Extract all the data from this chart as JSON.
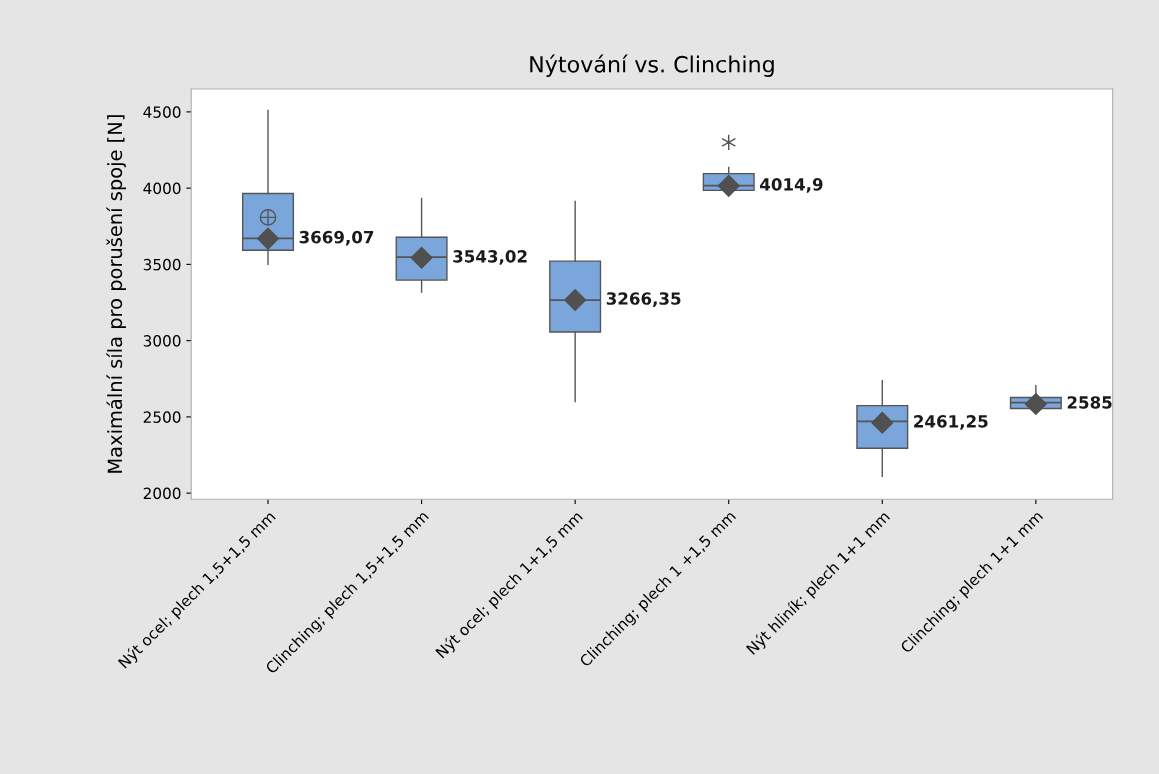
{
  "chart_data": {
    "type": "box",
    "title": "Nýtování vs. Clinching",
    "ylabel": "Maximální síla pro porušení spoje [N]",
    "categories": [
      "Nýt ocel; plech 1,5+1,5 mm",
      "Clinching; plech 1,5+1,5 mm",
      "Nýt ocel; plech 1+1,5 mm",
      "Clinching; plech 1 +1,5 mm",
      "Nýt hliník; plech 1+1 mm",
      "Clinching; plech 1+1 mm"
    ],
    "boxes": [
      {
        "low": 3500,
        "q1": 3593,
        "median": 3670,
        "q3": 3965,
        "high": 4510,
        "mean": 3808
      },
      {
        "low": 3318,
        "q1": 3397,
        "median": 3547,
        "q3": 3678,
        "high": 3932
      },
      {
        "low": 2600,
        "q1": 3057,
        "median": 3266,
        "q3": 3521,
        "high": 3912
      },
      {
        "low": 3965,
        "q1": 3985,
        "median": 4017,
        "q3": 4095,
        "high": 4135,
        "outliers": [
          4300
        ]
      },
      {
        "low": 2110,
        "q1": 2294,
        "median": 2470,
        "q3": 2574,
        "high": 2738
      },
      {
        "low": 2550,
        "q1": 2555,
        "median": 2594,
        "q3": 2627,
        "high": 2705
      }
    ],
    "color": "#7ba6db",
    "series": [
      {
        "type": "scatter",
        "color": "#505050",
        "marker": "diamond",
        "x": [
          "Nýt ocel; plech 1,5+1,5 mm",
          "Clinching; plech 1,5+1,5 mm",
          "Nýt ocel; plech 1+1,5 mm",
          "Clinching; plech 1 +1,5 mm",
          "Nýt hliník; plech 1+1 mm",
          "Clinching; plech 1+1 mm"
        ],
        "values": [
          3669.07,
          3543.02,
          3266.35,
          4014.9,
          2461.25,
          2585
        ],
        "value_labels": [
          "3669,07",
          "3543,02",
          "3266,35",
          "4014,9",
          "2461,25",
          "2585"
        ]
      }
    ],
    "ylim": [
      1960,
      4650
    ],
    "yticks": [
      2000,
      2500,
      3000,
      3500,
      4000,
      4500
    ],
    "grid": false
  }
}
